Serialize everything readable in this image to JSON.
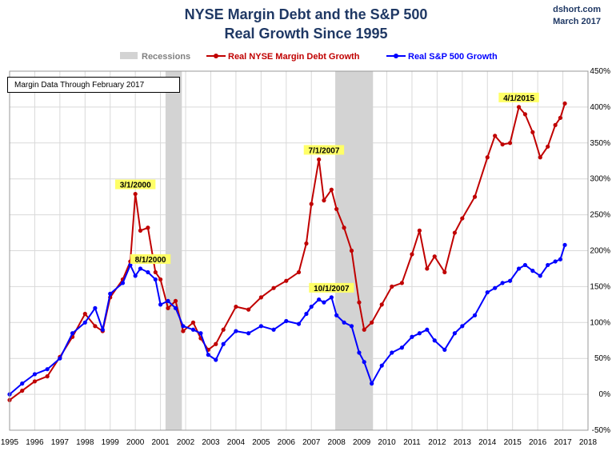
{
  "header": {
    "title_line1": "NYSE Margin Debt and the S&P 500",
    "title_line2": "Real Growth Since 1995",
    "source": "dshort.com",
    "date": "March 2017"
  },
  "note": "Margin Data Through February 2017",
  "colors": {
    "margin": "#c00000",
    "sp500": "#0000ff",
    "recession": "#d3d3d3",
    "title": "#1f3864"
  },
  "chart_data": {
    "type": "line",
    "title": "NYSE Margin Debt and the S&P 500 Real Growth Since 1995",
    "xlim": [
      1995,
      2018
    ],
    "ylim": [
      -50,
      450
    ],
    "x_ticks": [
      "1995",
      "1996",
      "1997",
      "1998",
      "1999",
      "2000",
      "2001",
      "2002",
      "2003",
      "2004",
      "2005",
      "2006",
      "2007",
      "2008",
      "2009",
      "2010",
      "2011",
      "2012",
      "2013",
      "2014",
      "2015",
      "2016",
      "2017",
      "2018"
    ],
    "y_ticks": [
      "-50%",
      "0%",
      "50%",
      "100%",
      "150%",
      "200%",
      "250%",
      "300%",
      "350%",
      "400%",
      "450%"
    ],
    "legend": [
      "Recessions",
      "Real NYSE Margin Debt Growth",
      "Real S&P 500 Growth"
    ],
    "recessions": [
      [
        2001.2,
        2001.85
      ],
      [
        2007.95,
        2009.45
      ]
    ],
    "series": [
      {
        "name": "Real NYSE Margin Debt Growth",
        "x": [
          1995.0,
          1995.5,
          1996.0,
          1996.5,
          1997.0,
          1997.5,
          1998.0,
          1998.4,
          1998.7,
          1999.0,
          1999.5,
          1999.8,
          2000.0,
          2000.2,
          2000.5,
          2000.8,
          2001.0,
          2001.3,
          2001.6,
          2001.9,
          2002.3,
          2002.6,
          2002.9,
          2003.2,
          2003.5,
          2004.0,
          2004.5,
          2005.0,
          2005.5,
          2006.0,
          2006.5,
          2006.8,
          2007.0,
          2007.3,
          2007.5,
          2007.8,
          2008.0,
          2008.3,
          2008.6,
          2008.9,
          2009.1,
          2009.4,
          2009.8,
          2010.2,
          2010.6,
          2011.0,
          2011.3,
          2011.6,
          2011.9,
          2012.3,
          2012.7,
          2013.0,
          2013.5,
          2014.0,
          2014.3,
          2014.6,
          2014.9,
          2015.25,
          2015.5,
          2015.8,
          2016.1,
          2016.4,
          2016.7,
          2016.9,
          2017.08
        ],
        "y": [
          -8,
          5,
          18,
          25,
          52,
          80,
          112,
          95,
          88,
          135,
          160,
          185,
          279,
          228,
          232,
          170,
          160,
          120,
          130,
          88,
          100,
          78,
          62,
          70,
          90,
          122,
          118,
          135,
          148,
          158,
          170,
          210,
          265,
          327,
          270,
          285,
          258,
          232,
          200,
          128,
          90,
          100,
          125,
          150,
          155,
          195,
          228,
          175,
          192,
          170,
          225,
          245,
          275,
          330,
          360,
          348,
          350,
          400,
          390,
          365,
          330,
          345,
          375,
          385,
          405
        ]
      },
      {
        "name": "Real S&P 500 Growth",
        "x": [
          1995.0,
          1995.5,
          1996.0,
          1996.5,
          1997.0,
          1997.5,
          1998.0,
          1998.4,
          1998.7,
          1999.0,
          1999.5,
          1999.8,
          2000.0,
          2000.2,
          2000.5,
          2000.8,
          2001.0,
          2001.3,
          2001.6,
          2001.9,
          2002.3,
          2002.6,
          2002.9,
          2003.2,
          2003.5,
          2004.0,
          2004.5,
          2005.0,
          2005.5,
          2006.0,
          2006.5,
          2006.8,
          2007.0,
          2007.3,
          2007.5,
          2007.8,
          2008.0,
          2008.3,
          2008.6,
          2008.9,
          2009.1,
          2009.4,
          2009.8,
          2010.2,
          2010.6,
          2011.0,
          2011.3,
          2011.6,
          2011.9,
          2012.3,
          2012.7,
          2013.0,
          2013.5,
          2014.0,
          2014.3,
          2014.6,
          2014.9,
          2015.25,
          2015.5,
          2015.8,
          2016.1,
          2016.4,
          2016.7,
          2016.9,
          2017.08
        ],
        "y": [
          0,
          15,
          28,
          35,
          50,
          85,
          100,
          120,
          90,
          140,
          155,
          180,
          165,
          175,
          170,
          160,
          125,
          130,
          120,
          95,
          90,
          85,
          55,
          48,
          70,
          88,
          85,
          95,
          90,
          102,
          98,
          112,
          122,
          132,
          128,
          135,
          110,
          100,
          95,
          58,
          45,
          15,
          40,
          58,
          65,
          80,
          85,
          90,
          75,
          62,
          85,
          95,
          110,
          142,
          148,
          155,
          158,
          175,
          180,
          172,
          165,
          180,
          185,
          188,
          208
        ]
      }
    ],
    "annotations": [
      {
        "label": "3/1/2000",
        "x": 2000.0,
        "y": 279
      },
      {
        "label": "8/1/2000",
        "x": 2000.6,
        "y": 175
      },
      {
        "label": "7/1/2007",
        "x": 2007.5,
        "y": 327
      },
      {
        "label": "10/1/2007",
        "x": 2007.8,
        "y": 135
      },
      {
        "label": "4/1/2015",
        "x": 2015.25,
        "y": 400
      }
    ]
  }
}
